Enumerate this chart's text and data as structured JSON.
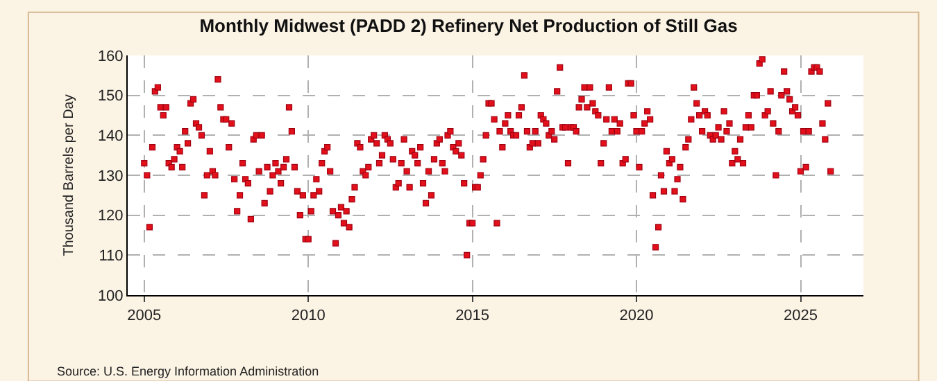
{
  "chart_data": {
    "type": "scatter",
    "title": "Monthly Midwest (PADD 2) Refinery Net Production of Still Gas",
    "ylabel": "Thousand Barrels per Day",
    "annotations": [
      "Source: U.S. Energy Information Administration"
    ],
    "x": [
      "2005-01",
      "2005-02",
      "2005-03",
      "2005-04",
      "2005-05",
      "2005-06",
      "2005-07",
      "2005-08",
      "2005-09",
      "2005-10",
      "2005-11",
      "2005-12",
      "2006-01",
      "2006-02",
      "2006-03",
      "2006-04",
      "2006-05",
      "2006-06",
      "2006-07",
      "2006-08",
      "2006-09",
      "2006-10",
      "2006-11",
      "2006-12",
      "2007-01",
      "2007-02",
      "2007-03",
      "2007-04",
      "2007-05",
      "2007-06",
      "2007-07",
      "2007-08",
      "2007-09",
      "2007-10",
      "2007-11",
      "2007-12",
      "2008-01",
      "2008-02",
      "2008-03",
      "2008-04",
      "2008-05",
      "2008-06",
      "2008-07",
      "2008-08",
      "2008-09",
      "2008-10",
      "2008-11",
      "2008-12",
      "2009-01",
      "2009-02",
      "2009-03",
      "2009-04",
      "2009-05",
      "2009-06",
      "2009-07",
      "2009-08",
      "2009-09",
      "2009-10",
      "2009-11",
      "2009-12",
      "2010-01",
      "2010-02",
      "2010-03",
      "2010-04",
      "2010-05",
      "2010-06",
      "2010-07",
      "2010-08",
      "2010-09",
      "2010-10",
      "2010-11",
      "2010-12",
      "2011-01",
      "2011-02",
      "2011-03",
      "2011-04",
      "2011-05",
      "2011-06",
      "2011-07",
      "2011-08",
      "2011-09",
      "2011-10",
      "2011-11",
      "2011-12",
      "2012-01",
      "2012-02",
      "2012-03",
      "2012-04",
      "2012-05",
      "2012-06",
      "2012-07",
      "2012-08",
      "2012-09",
      "2012-10",
      "2012-11",
      "2012-12",
      "2013-01",
      "2013-02",
      "2013-03",
      "2013-04",
      "2013-05",
      "2013-06",
      "2013-07",
      "2013-08",
      "2013-09",
      "2013-10",
      "2013-11",
      "2013-12",
      "2014-01",
      "2014-02",
      "2014-03",
      "2014-04",
      "2014-05",
      "2014-06",
      "2014-07",
      "2014-08",
      "2014-09",
      "2014-10",
      "2014-11",
      "2014-12",
      "2015-01",
      "2015-02",
      "2015-03",
      "2015-04",
      "2015-05",
      "2015-06",
      "2015-07",
      "2015-08",
      "2015-09",
      "2015-10",
      "2015-11",
      "2015-12",
      "2016-01",
      "2016-02",
      "2016-03",
      "2016-04",
      "2016-05",
      "2016-06",
      "2016-07",
      "2016-08",
      "2016-09",
      "2016-10",
      "2016-11",
      "2016-12",
      "2017-01",
      "2017-02",
      "2017-03",
      "2017-04",
      "2017-05",
      "2017-06",
      "2017-07",
      "2017-08",
      "2017-09",
      "2017-10",
      "2017-11",
      "2017-12",
      "2018-01",
      "2018-02",
      "2018-03",
      "2018-04",
      "2018-05",
      "2018-06",
      "2018-07",
      "2018-08",
      "2018-09",
      "2018-10",
      "2018-11",
      "2018-12",
      "2019-01",
      "2019-02",
      "2019-03",
      "2019-04",
      "2019-05",
      "2019-06",
      "2019-07",
      "2019-08",
      "2019-09",
      "2019-10",
      "2019-11",
      "2019-12",
      "2020-01",
      "2020-02",
      "2020-03",
      "2020-04",
      "2020-05",
      "2020-06",
      "2020-07",
      "2020-08",
      "2020-09",
      "2020-10",
      "2020-11",
      "2020-12",
      "2021-01",
      "2021-02",
      "2021-03",
      "2021-04",
      "2021-05",
      "2021-06",
      "2021-07",
      "2021-08",
      "2021-09",
      "2021-10",
      "2021-11",
      "2021-12",
      "2022-01",
      "2022-02",
      "2022-03",
      "2022-04",
      "2022-05",
      "2022-06",
      "2022-07",
      "2022-08",
      "2022-09",
      "2022-10",
      "2022-11",
      "2022-12",
      "2023-01",
      "2023-02",
      "2023-03",
      "2023-04",
      "2023-05",
      "2023-06",
      "2023-07",
      "2023-08",
      "2023-09",
      "2023-10",
      "2023-11",
      "2023-12",
      "2024-01",
      "2024-02",
      "2024-03",
      "2024-04",
      "2024-05",
      "2024-06",
      "2024-07",
      "2024-08",
      "2024-09",
      "2024-10",
      "2024-11",
      "2024-12",
      "2025-01",
      "2025-02",
      "2025-03",
      "2025-04",
      "2025-05",
      "2025-06",
      "2025-07",
      "2025-08",
      "2025-09",
      "2025-10",
      "2025-11",
      "2025-12"
    ],
    "series": [
      {
        "color": "#e3101b",
        "values": [
          133,
          130,
          117,
          137,
          151,
          152,
          147,
          145,
          147,
          133,
          132,
          134,
          137,
          136,
          132,
          141,
          138,
          148,
          149,
          143,
          142,
          140,
          125,
          130,
          136,
          131,
          130,
          154,
          147,
          144,
          144,
          137,
          143,
          129,
          121,
          125,
          133,
          129,
          128,
          119,
          139,
          140,
          131,
          140,
          123,
          132,
          126,
          130,
          133,
          131,
          128,
          132,
          134,
          147,
          141,
          132,
          126,
          120,
          125,
          114,
          114,
          121,
          125,
          129,
          126,
          133,
          136,
          137,
          131,
          121,
          113,
          120,
          122,
          118,
          121,
          117,
          124,
          127,
          138,
          137,
          131,
          130,
          132,
          139,
          140,
          138,
          133,
          135,
          140,
          139,
          138,
          134,
          127,
          128,
          133,
          139,
          131,
          127,
          136,
          135,
          133,
          137,
          128,
          123,
          131,
          125,
          134,
          138,
          139,
          133,
          131,
          140,
          141,
          137,
          136,
          138,
          135,
          128,
          110,
          118,
          118,
          127,
          127,
          130,
          134,
          140,
          148,
          148,
          144,
          118,
          141,
          137,
          143,
          145,
          141,
          140,
          140,
          145,
          147,
          155,
          141,
          137,
          138,
          141,
          138,
          145,
          144,
          143,
          140,
          141,
          139,
          151,
          157,
          142,
          142,
          133,
          142,
          142,
          141,
          147,
          149,
          152,
          147,
          152,
          148,
          146,
          145,
          133,
          138,
          144,
          152,
          141,
          144,
          141,
          143,
          133,
          134,
          153,
          153,
          145,
          141,
          132,
          141,
          143,
          146,
          144,
          125,
          112,
          117,
          130,
          126,
          136,
          133,
          134,
          126,
          129,
          132,
          124,
          137,
          139,
          144,
          152,
          148,
          145,
          141,
          146,
          145,
          140,
          139,
          140,
          142,
          139,
          146,
          141,
          143,
          133,
          136,
          134,
          139,
          133,
          142,
          145,
          142,
          150,
          150,
          158,
          159,
          145,
          146,
          151,
          143,
          130,
          141,
          150,
          156,
          151,
          149,
          146,
          147,
          145,
          131,
          141,
          132,
          141,
          156,
          157,
          157,
          156,
          143,
          139,
          148,
          131
        ]
      }
    ],
    "xlim": [
      "2004-07-01",
      "2026-12-01"
    ],
    "xticks": [
      {
        "value": "2005-01-01",
        "label": "2005"
      },
      {
        "value": "2010-01-01",
        "label": "2010"
      },
      {
        "value": "2015-01-01",
        "label": "2015"
      },
      {
        "value": "2020-01-01",
        "label": "2020"
      },
      {
        "value": "2025-01-01",
        "label": "2025"
      }
    ],
    "ylim": [
      100,
      160
    ],
    "yticks": [
      100,
      110,
      120,
      130,
      140,
      150,
      160
    ],
    "grid": true,
    "marker": "square"
  }
}
